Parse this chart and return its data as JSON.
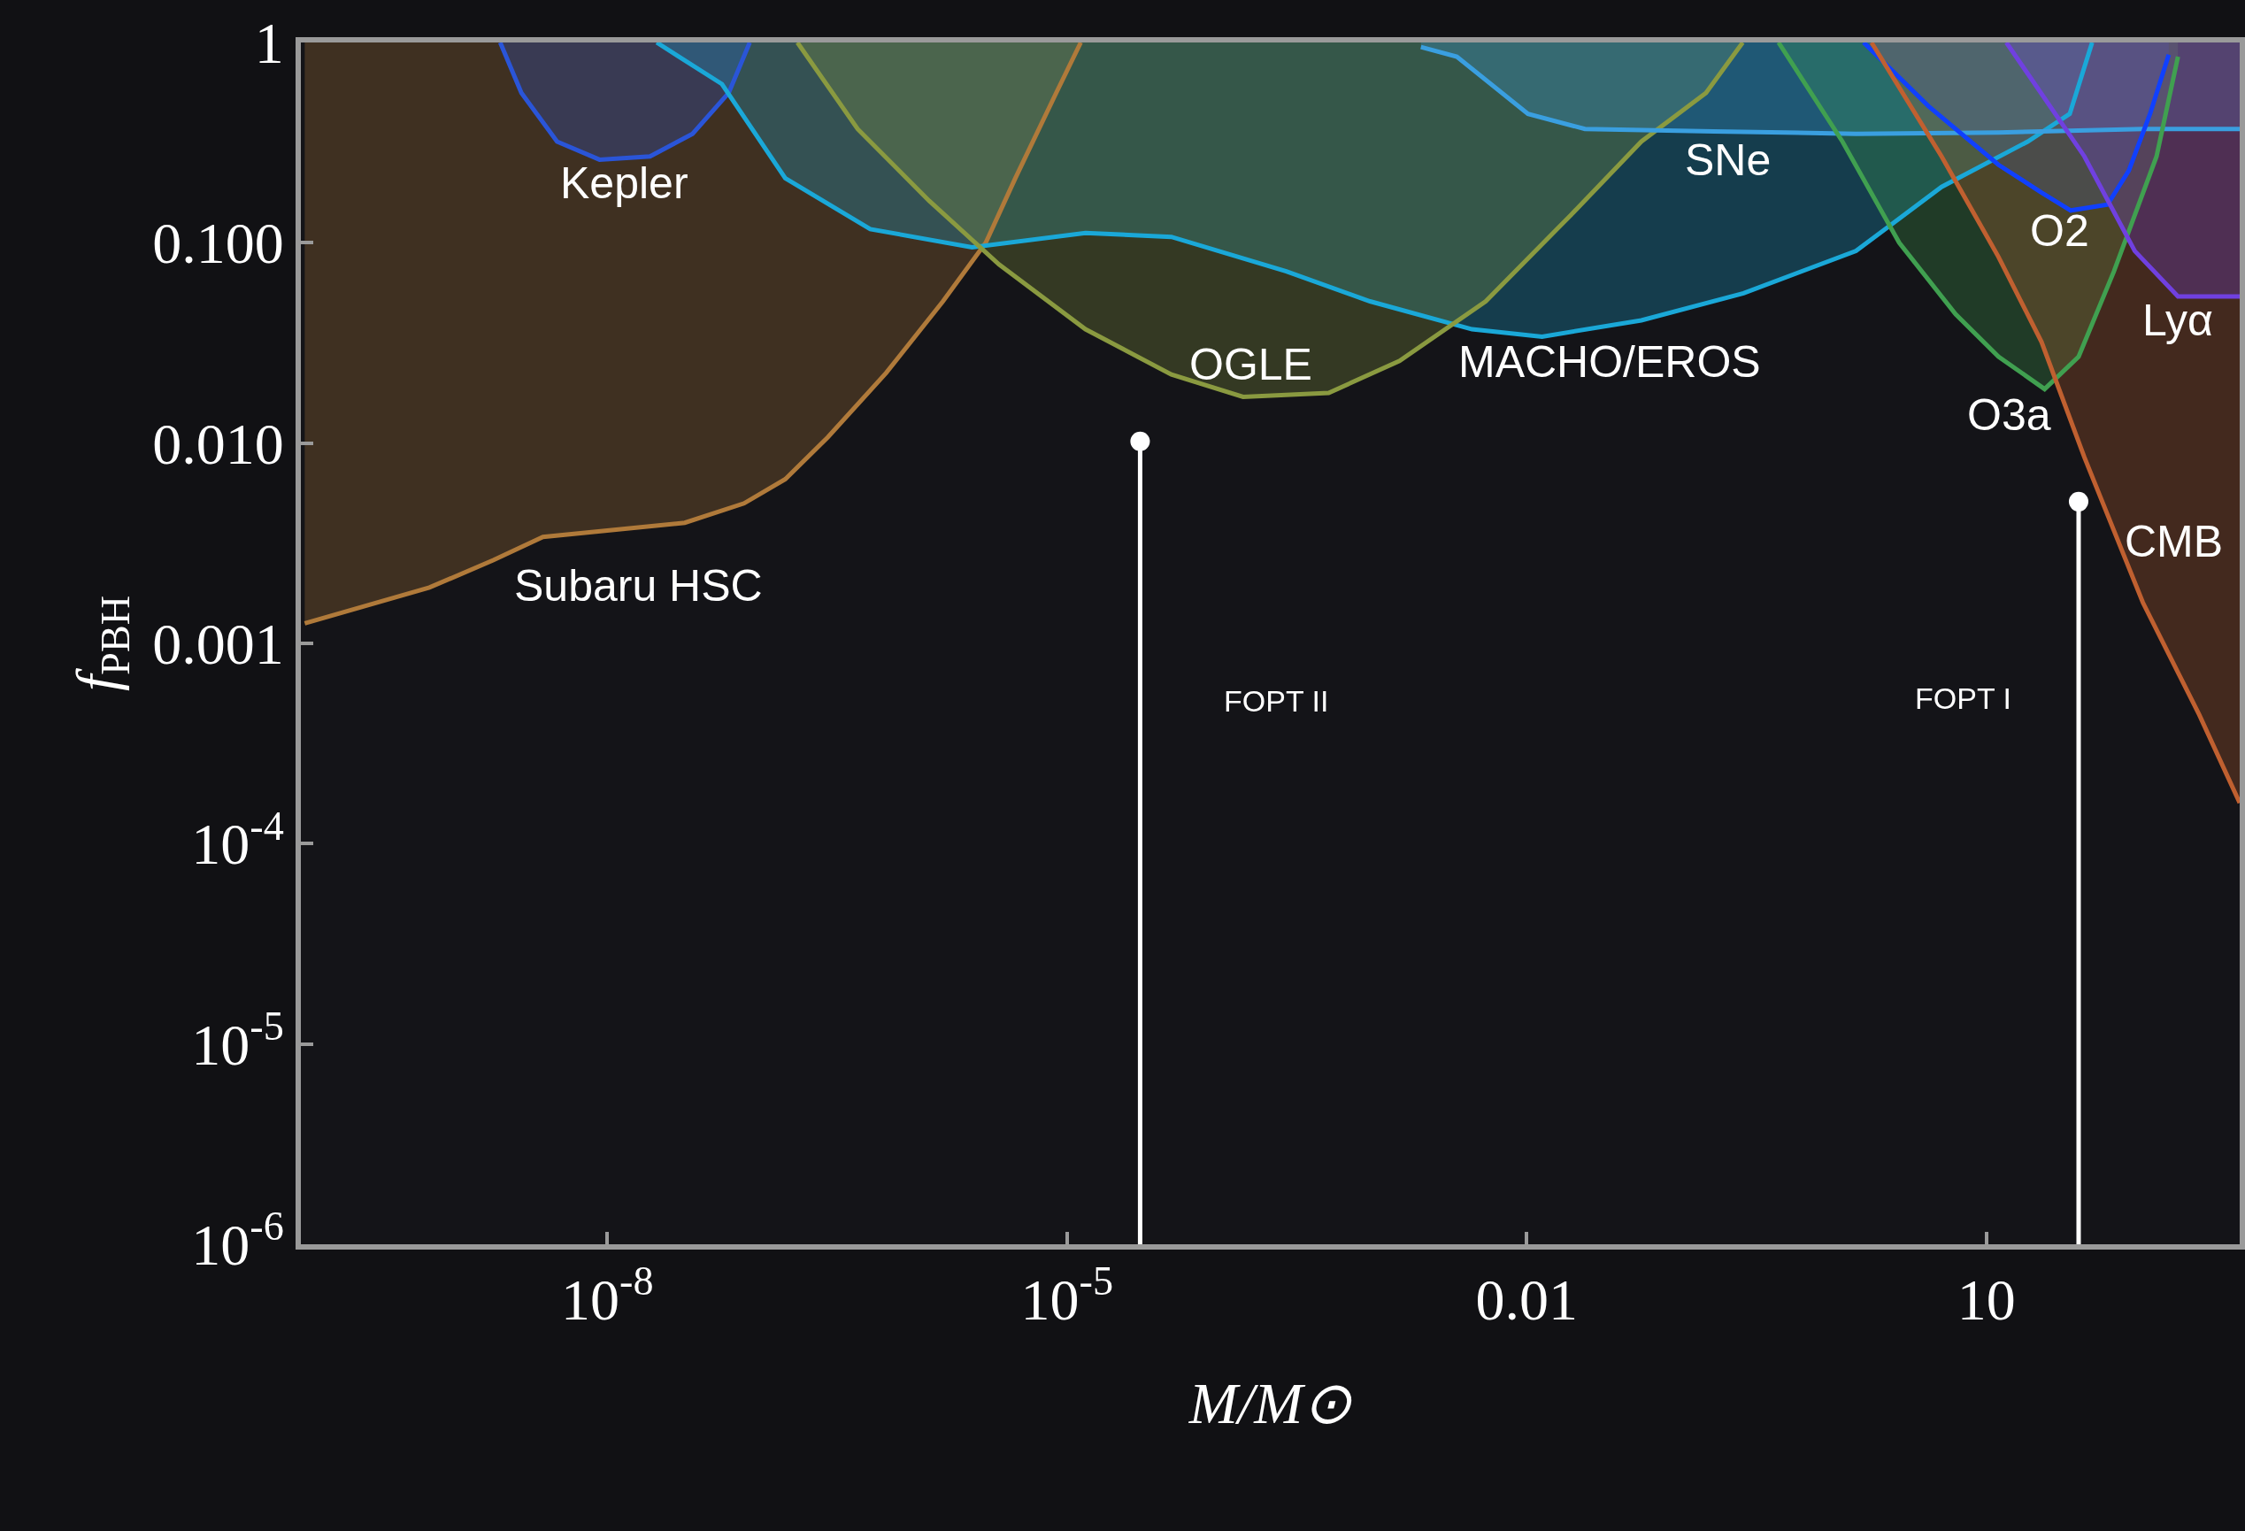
{
  "chart_data": {
    "type": "line",
    "xlabel": "M/M⊙",
    "ylabel": "f$_{PBH}$",
    "log": "xy",
    "grid": false,
    "legend": false,
    "xlim": [
      1e-10,
      450
    ],
    "ylim": [
      1e-06,
      1
    ],
    "xticks": [
      {
        "value": 1e-08,
        "label": "10$^{-8}$"
      },
      {
        "value": 1e-05,
        "label": "10$^{-5}$"
      },
      {
        "value": 0.01,
        "label": "0.01"
      },
      {
        "value": 10,
        "label": "10"
      }
    ],
    "yticks": [
      {
        "value": 1e-06,
        "label": "10$^{-6}$"
      },
      {
        "value": 1e-05,
        "label": "10$^{-5}$"
      },
      {
        "value": 0.0001,
        "label": "10$^{-4}$"
      },
      {
        "value": 0.001,
        "label": "0.001"
      },
      {
        "value": 0.01,
        "label": "0.010"
      },
      {
        "value": 0.1,
        "label": "0.100"
      },
      {
        "value": 1,
        "label": "1"
      }
    ],
    "series": [
      {
        "name": "Subaru HSC",
        "color": "#b07a3a",
        "x": [
          1.06e-10,
          6.9e-10,
          1.8e-09,
          3.8e-09,
          3.2e-08,
          7.8e-08,
          1.45e-07,
          2.75e-07,
          6.6e-07,
          1.55e-06,
          2.95e-06,
          4.6e-06,
          8.5e-06,
          1.23e-05
        ],
        "values": [
          0.00126,
          0.0019,
          0.0026,
          0.0034,
          0.004,
          0.005,
          0.0066,
          0.0107,
          0.0224,
          0.051,
          0.1,
          0.21,
          0.56,
          1
        ],
        "lower": [
          0.00126,
          0.0019,
          0.0026,
          0.0034,
          0.004,
          0.005,
          0.0066,
          0.0107,
          0.0224,
          0.051,
          0.1,
          0.21,
          0.56,
          1
        ],
        "upper": [
          1,
          1,
          1,
          1,
          1,
          1,
          1,
          1,
          1,
          1,
          1,
          1,
          1,
          1
        ]
      },
      {
        "name": "Kepler",
        "color": "#2a55d8",
        "x": [
          2e-09,
          2.75e-09,
          4.7e-09,
          8.9e-09,
          1.9e-08,
          3.6e-08,
          6.2e-08,
          8.5e-08
        ],
        "values": [
          1,
          0.56,
          0.32,
          0.26,
          0.27,
          0.35,
          0.56,
          1
        ],
        "lower": [
          1,
          0.56,
          0.32,
          0.26,
          0.27,
          0.35,
          0.56,
          1
        ],
        "upper": [
          1,
          1,
          1,
          1,
          1,
          1,
          1,
          1
        ]
      },
      {
        "name": "MACHO/EROS",
        "color": "#1aa8d8",
        "x": [
          2.1e-08,
          5.6e-08,
          1.45e-07,
          5.2e-07,
          2.4e-06,
          1.32e-05,
          4.8e-05,
          0.00027,
          0.00095,
          0.0044,
          0.0126,
          0.056,
          0.26,
          1.41,
          5.1,
          18.6,
          35,
          49
        ],
        "values": [
          1,
          0.62,
          0.21,
          0.117,
          0.095,
          0.112,
          0.107,
          0.072,
          0.051,
          0.037,
          0.034,
          0.041,
          0.056,
          0.091,
          0.19,
          0.32,
          0.44,
          1
        ],
        "lower": [
          1,
          0.62,
          0.21,
          0.117,
          0.095,
          0.112,
          0.107,
          0.072,
          0.051,
          0.037,
          0.034,
          0.041,
          0.056,
          0.091,
          0.19,
          0.32,
          0.44,
          1
        ],
        "upper": [
          1,
          1,
          1,
          1,
          1,
          1,
          1,
          1,
          1,
          1,
          1,
          1,
          1,
          1,
          1,
          1,
          1,
          1
        ]
      },
      {
        "name": "OGLE",
        "color": "#8a9a40",
        "x": [
          1.74e-07,
          4.3e-07,
          1.26e-06,
          3.6e-06,
          1.32e-05,
          4.8e-05,
          0.000141,
          0.00051,
          0.00148,
          0.0054,
          0.0195,
          0.056,
          0.148,
          0.257
        ],
        "values": [
          1,
          0.37,
          0.162,
          0.078,
          0.037,
          0.022,
          0.017,
          0.0178,
          0.0257,
          0.051,
          0.138,
          0.32,
          0.56,
          1
        ],
        "lower": [
          1,
          0.37,
          0.162,
          0.078,
          0.037,
          0.022,
          0.017,
          0.0178,
          0.0257,
          0.051,
          0.138,
          0.32,
          0.56,
          1
        ],
        "upper": [
          1,
          1,
          1,
          1,
          1,
          1,
          1,
          1,
          1,
          1,
          1,
          1,
          1,
          1
        ]
      },
      {
        "name": "SNe",
        "color": "#3a9fe0",
        "x": [
          0.00204,
          0.0035,
          0.0102,
          0.024,
          0.166,
          1.41,
          12,
          105,
          450
        ],
        "values": [
          0.95,
          0.85,
          0.44,
          0.37,
          0.36,
          0.35,
          0.355,
          0.37,
          0.37
        ],
        "lower": [
          0.95,
          0.85,
          0.44,
          0.37,
          0.36,
          0.35,
          0.355,
          0.37,
          0.37
        ],
        "upper": [
          1,
          1,
          1,
          1,
          1,
          1,
          1,
          1,
          1
        ]
      },
      {
        "name": "O2",
        "color": "#1040ff",
        "x": [
          1.58,
          4.2,
          12,
          22.9,
          35.5,
          61.7,
          85,
          117,
          155
        ],
        "values": [
          1,
          0.48,
          0.245,
          0.178,
          0.145,
          0.155,
          0.229,
          0.44,
          0.87
        ],
        "lower": [
          1,
          0.48,
          0.245,
          0.178,
          0.145,
          0.155,
          0.229,
          0.44,
          0.87
        ],
        "upper": [
          1,
          1,
          1,
          1,
          1,
          1,
          1,
          1,
          1
        ]
      },
      {
        "name": "O3a",
        "color": "#40a050",
        "x": [
          0.44,
          1.15,
          2.7,
          6.3,
          12,
          24,
          40,
          68,
          129,
          178
        ],
        "values": [
          1,
          0.32,
          0.1,
          0.044,
          0.027,
          0.0186,
          0.027,
          0.072,
          0.27,
          0.85
        ],
        "lower": [
          1,
          0.32,
          0.1,
          0.044,
          0.027,
          0.0186,
          0.027,
          0.072,
          0.27,
          0.85
        ],
        "upper": [
          1,
          1,
          1,
          1,
          1,
          1,
          1,
          1,
          1,
          1
        ]
      },
      {
        "name": "CMB",
        "color": "#c06030",
        "x": [
          1.78,
          5.1,
          12,
          22.9,
          43.6,
          105,
          245,
          450
        ],
        "values": [
          1,
          0.27,
          0.085,
          0.032,
          0.0085,
          0.0016,
          0.00044,
          0.00016
        ],
        "lower": [
          1,
          0.27,
          0.085,
          0.032,
          0.0085,
          0.0016,
          0.00044,
          0.00016
        ],
        "upper": [
          1,
          1,
          1,
          1,
          1,
          1,
          1,
          1
        ]
      },
      {
        "name": "Lyα",
        "color": "#7040e0",
        "x": [
          13.5,
          43.6,
          93,
          178,
          450
        ],
        "values": [
          1,
          0.27,
          0.091,
          0.054,
          0.054
        ],
        "lower": [
          1,
          0.27,
          0.091,
          0.054,
          0.054
        ],
        "upper": [
          1,
          1,
          1,
          1,
          1
        ]
      },
      {
        "type": "lollipop",
        "marker": "circle",
        "color": "#ffffff",
        "x": [
          3e-05,
          40
        ],
        "values": [
          0.0102,
          0.0051
        ]
      }
    ],
    "annotations": [
      "FOPT II",
      "FOPT I"
    ]
  }
}
